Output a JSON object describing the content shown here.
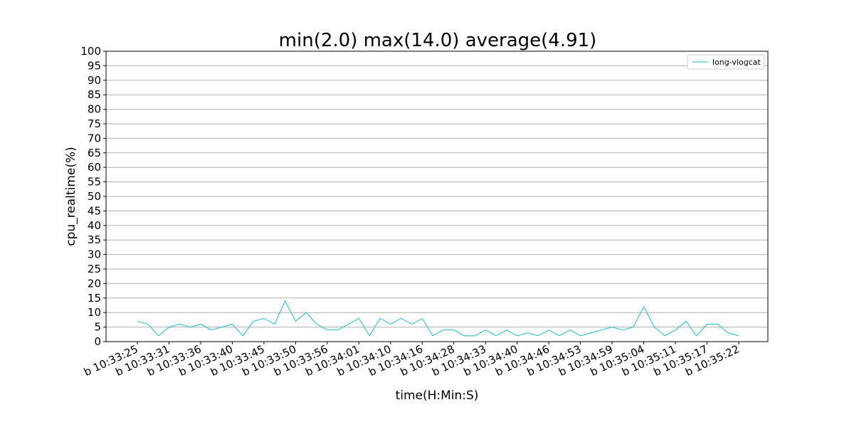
{
  "chart_data": {
    "type": "line",
    "title": "min(2.0) max(14.0) average(4.91)",
    "xlabel": "time(H:Min:S)",
    "ylabel": "cpu_realtime(%)",
    "ylim": [
      0,
      100
    ],
    "yticks": [
      0,
      5,
      10,
      15,
      20,
      25,
      30,
      35,
      40,
      45,
      50,
      55,
      60,
      65,
      70,
      75,
      80,
      85,
      90,
      95,
      100
    ],
    "grid": "horizontal",
    "legend_position": "top-right",
    "xtick_labels": [
      "b 10:33:25",
      "b 10:33:31",
      "b 10:33:36",
      "b 10:33:40",
      "b 10:33:45",
      "b 10:33:50",
      "b 10:33:56",
      "b 10:34:01",
      "b 10:34:10",
      "b 10:34:16",
      "b 10:34:28",
      "b 10:34:33",
      "b 10:34:40",
      "b 10:34:46",
      "b 10:34:53",
      "b 10:34:59",
      "b 10:35:04",
      "b 10:35:11",
      "b 10:35:17",
      "b 10:35:22"
    ],
    "xtick_indices": [
      0,
      3,
      6,
      9,
      12,
      15,
      18,
      21,
      24,
      27,
      30,
      33,
      36,
      39,
      42,
      45,
      48,
      51,
      54,
      57
    ],
    "series": [
      {
        "name": "long-vlogcat",
        "color": "#17becf",
        "values": [
          7,
          6,
          2,
          5,
          6,
          5,
          6,
          4,
          5,
          6,
          2,
          7,
          8,
          6,
          14,
          7,
          10,
          6,
          4,
          4,
          6,
          8,
          2,
          8,
          6,
          8,
          6,
          8,
          2,
          4,
          4,
          2,
          2,
          4,
          2,
          4,
          2,
          3,
          2,
          4,
          2,
          4,
          2,
          3,
          4,
          5,
          4,
          5,
          12,
          5,
          2,
          4,
          7,
          2,
          6,
          6,
          3,
          2
        ]
      }
    ]
  }
}
